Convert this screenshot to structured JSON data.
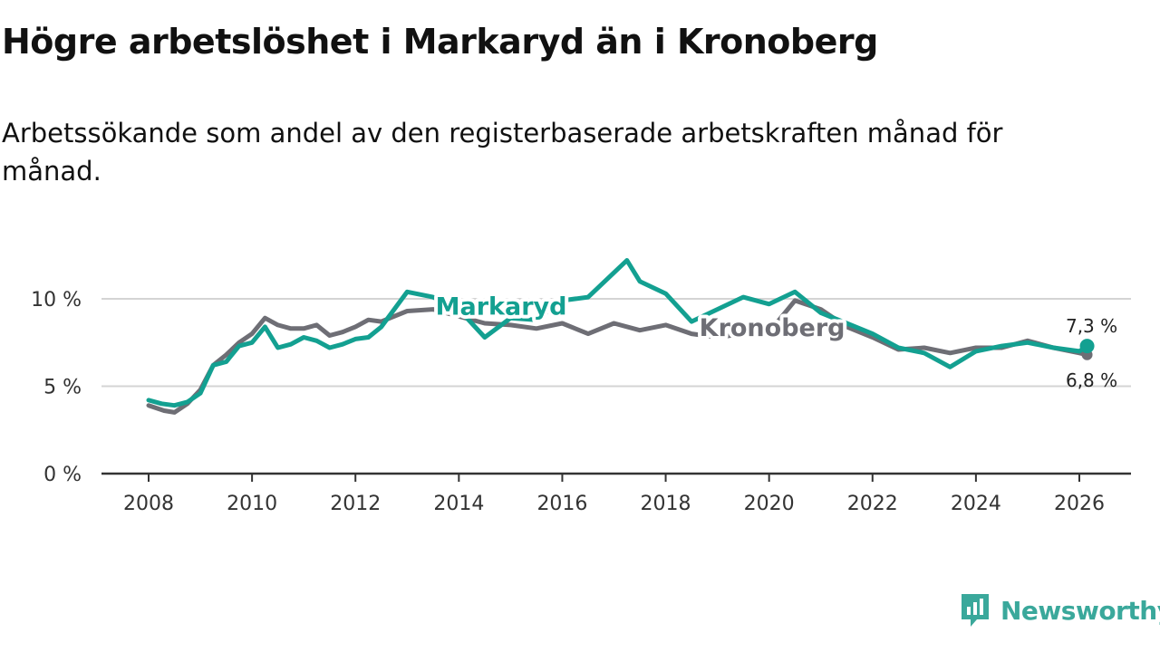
{
  "title": "Högre arbetslöshet i Markaryd än i Kronoberg",
  "subtitle": "Arbetssökande som andel av den registerbaserade arbetskraften månad för månad.",
  "brand": {
    "name": "Newsworthy"
  },
  "colors": {
    "markaryd": "#13a091",
    "kronoberg": "#6e6e75",
    "grid": "#d4d4d4",
    "axis": "#333333"
  },
  "chart_data": {
    "type": "line",
    "title": "Högre arbetslöshet i Markaryd än i Kronoberg",
    "subtitle": "Arbetssökande som andel av den registerbaserade arbetskraften månad för månad.",
    "xlabel": "",
    "ylabel": "",
    "xlim": [
      2007.5,
      2026.9
    ],
    "ylim": [
      0,
      11
    ],
    "x_ticks": [
      2008,
      2010,
      2012,
      2014,
      2016,
      2018,
      2020,
      2022,
      2024,
      2026
    ],
    "x_tick_labels": [
      "2008",
      "2010",
      "2012",
      "2014",
      "2016",
      "2018",
      "2020",
      "2022",
      "2024",
      "2026"
    ],
    "y_ticks": [
      0,
      5,
      10
    ],
    "y_tick_labels": [
      "0 %",
      "5 %",
      "10 %"
    ],
    "grid": true,
    "series": [
      {
        "name": "Kronoberg",
        "label": "Kronoberg",
        "end_label": "6,8 %",
        "points": [
          [
            2008.0,
            3.9
          ],
          [
            2008.3,
            3.6
          ],
          [
            2008.5,
            3.5
          ],
          [
            2008.75,
            4.0
          ],
          [
            2009.0,
            4.8
          ],
          [
            2009.25,
            6.2
          ],
          [
            2009.5,
            6.8
          ],
          [
            2009.75,
            7.5
          ],
          [
            2010.0,
            8.0
          ],
          [
            2010.25,
            8.9
          ],
          [
            2010.5,
            8.5
          ],
          [
            2010.75,
            8.3
          ],
          [
            2011.0,
            8.3
          ],
          [
            2011.25,
            8.5
          ],
          [
            2011.5,
            7.9
          ],
          [
            2011.75,
            8.1
          ],
          [
            2012.0,
            8.4
          ],
          [
            2012.25,
            8.8
          ],
          [
            2012.5,
            8.7
          ],
          [
            2012.75,
            9.0
          ],
          [
            2013.0,
            9.3
          ],
          [
            2013.5,
            9.4
          ],
          [
            2014.0,
            9.0
          ],
          [
            2014.5,
            8.6
          ],
          [
            2015.0,
            8.5
          ],
          [
            2015.5,
            8.3
          ],
          [
            2016.0,
            8.6
          ],
          [
            2016.5,
            8.0
          ],
          [
            2017.0,
            8.6
          ],
          [
            2017.5,
            8.2
          ],
          [
            2018.0,
            8.5
          ],
          [
            2018.5,
            8.0
          ],
          [
            2019.0,
            7.8
          ],
          [
            2019.5,
            8.0
          ],
          [
            2020.0,
            8.1
          ],
          [
            2020.5,
            9.9
          ],
          [
            2021.0,
            9.4
          ],
          [
            2021.5,
            8.4
          ],
          [
            2022.0,
            7.8
          ],
          [
            2022.5,
            7.1
          ],
          [
            2023.0,
            7.2
          ],
          [
            2023.5,
            6.9
          ],
          [
            2024.0,
            7.2
          ],
          [
            2024.5,
            7.2
          ],
          [
            2025.0,
            7.6
          ],
          [
            2025.5,
            7.2
          ],
          [
            2026.0,
            6.9
          ],
          [
            2026.15,
            6.8
          ]
        ]
      },
      {
        "name": "Markaryd",
        "label": "Markaryd",
        "end_label": "7,3 %",
        "points": [
          [
            2008.0,
            4.2
          ],
          [
            2008.25,
            4.0
          ],
          [
            2008.5,
            3.9
          ],
          [
            2008.75,
            4.1
          ],
          [
            2009.0,
            4.6
          ],
          [
            2009.25,
            6.2
          ],
          [
            2009.5,
            6.4
          ],
          [
            2009.75,
            7.3
          ],
          [
            2010.0,
            7.5
          ],
          [
            2010.25,
            8.4
          ],
          [
            2010.5,
            7.2
          ],
          [
            2010.75,
            7.4
          ],
          [
            2011.0,
            7.8
          ],
          [
            2011.25,
            7.6
          ],
          [
            2011.5,
            7.2
          ],
          [
            2011.75,
            7.4
          ],
          [
            2012.0,
            7.7
          ],
          [
            2012.25,
            7.8
          ],
          [
            2012.5,
            8.4
          ],
          [
            2012.75,
            9.4
          ],
          [
            2013.0,
            10.4
          ],
          [
            2013.5,
            10.1
          ],
          [
            2014.0,
            9.4
          ],
          [
            2014.5,
            7.8
          ],
          [
            2015.0,
            8.9
          ],
          [
            2015.5,
            8.8
          ],
          [
            2016.0,
            9.9
          ],
          [
            2016.5,
            10.1
          ],
          [
            2017.0,
            11.5
          ],
          [
            2017.25,
            12.2
          ],
          [
            2017.5,
            11.0
          ],
          [
            2018.0,
            10.3
          ],
          [
            2018.5,
            8.7
          ],
          [
            2019.0,
            9.4
          ],
          [
            2019.5,
            10.1
          ],
          [
            2020.0,
            9.7
          ],
          [
            2020.5,
            10.4
          ],
          [
            2021.0,
            9.2
          ],
          [
            2021.5,
            8.6
          ],
          [
            2022.0,
            8.0
          ],
          [
            2022.5,
            7.2
          ],
          [
            2023.0,
            6.9
          ],
          [
            2023.5,
            6.1
          ],
          [
            2024.0,
            7.0
          ],
          [
            2024.5,
            7.3
          ],
          [
            2025.0,
            7.5
          ],
          [
            2025.5,
            7.2
          ],
          [
            2026.0,
            7.0
          ],
          [
            2026.15,
            7.3
          ]
        ]
      }
    ]
  }
}
